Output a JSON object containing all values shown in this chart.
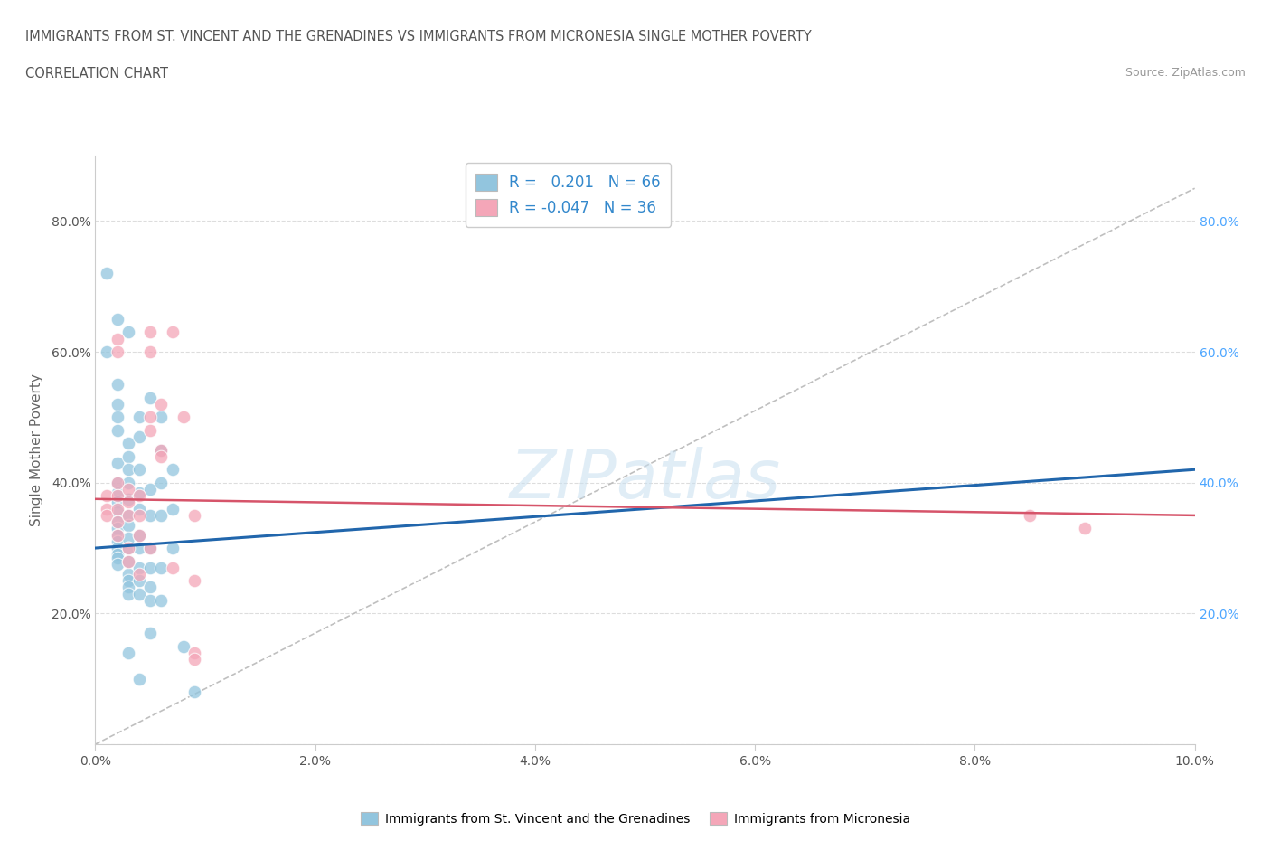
{
  "title_line1": "IMMIGRANTS FROM ST. VINCENT AND THE GRENADINES VS IMMIGRANTS FROM MICRONESIA SINGLE MOTHER POVERTY",
  "title_line2": "CORRELATION CHART",
  "source_text": "Source: ZipAtlas.com",
  "ylabel": "Single Mother Poverty",
  "watermark": "ZIPatlas",
  "xlim": [
    0.0,
    10.0
  ],
  "ylim": [
    0.0,
    90.0
  ],
  "xtick_vals": [
    0.0,
    2.0,
    4.0,
    6.0,
    8.0,
    10.0
  ],
  "xtick_labels": [
    "0.0%",
    "2.0%",
    "4.0%",
    "6.0%",
    "8.0%",
    "10.0%"
  ],
  "ytick_vals_left": [
    0.0,
    20.0,
    40.0,
    60.0,
    80.0
  ],
  "ytick_labels_left": [
    "",
    "20.0%",
    "40.0%",
    "60.0%",
    "80.0%"
  ],
  "ytick_vals_right": [
    20.0,
    40.0,
    60.0,
    80.0
  ],
  "ytick_labels_right": [
    "20.0%",
    "40.0%",
    "60.0%",
    "80.0%"
  ],
  "color_blue": "#92c5de",
  "color_pink": "#f4a6b8",
  "color_blue_line": "#2166ac",
  "color_pink_line": "#d6546a",
  "color_dashed": "#b0b0b0",
  "title_color": "#555555",
  "source_color": "#999999",
  "blue_scatter": [
    [
      0.1,
      72.0
    ],
    [
      0.1,
      60.0
    ],
    [
      0.2,
      65.0
    ],
    [
      0.2,
      55.0
    ],
    [
      0.2,
      52.0
    ],
    [
      0.2,
      50.0
    ],
    [
      0.2,
      48.0
    ],
    [
      0.2,
      43.0
    ],
    [
      0.2,
      40.0
    ],
    [
      0.2,
      38.5
    ],
    [
      0.2,
      37.0
    ],
    [
      0.2,
      35.5
    ],
    [
      0.2,
      34.0
    ],
    [
      0.2,
      33.0
    ],
    [
      0.2,
      32.0
    ],
    [
      0.2,
      31.0
    ],
    [
      0.2,
      30.0
    ],
    [
      0.2,
      29.0
    ],
    [
      0.2,
      28.5
    ],
    [
      0.2,
      27.5
    ],
    [
      0.3,
      63.0
    ],
    [
      0.3,
      46.0
    ],
    [
      0.3,
      44.0
    ],
    [
      0.3,
      42.0
    ],
    [
      0.3,
      40.0
    ],
    [
      0.3,
      37.5
    ],
    [
      0.3,
      35.0
    ],
    [
      0.3,
      33.5
    ],
    [
      0.3,
      31.5
    ],
    [
      0.3,
      30.0
    ],
    [
      0.3,
      28.0
    ],
    [
      0.3,
      26.0
    ],
    [
      0.3,
      25.0
    ],
    [
      0.3,
      24.0
    ],
    [
      0.3,
      23.0
    ],
    [
      0.3,
      14.0
    ],
    [
      0.4,
      50.0
    ],
    [
      0.4,
      47.0
    ],
    [
      0.4,
      42.0
    ],
    [
      0.4,
      38.5
    ],
    [
      0.4,
      36.0
    ],
    [
      0.4,
      32.0
    ],
    [
      0.4,
      30.0
    ],
    [
      0.4,
      27.0
    ],
    [
      0.4,
      25.0
    ],
    [
      0.4,
      23.0
    ],
    [
      0.4,
      10.0
    ],
    [
      0.5,
      53.0
    ],
    [
      0.5,
      39.0
    ],
    [
      0.5,
      35.0
    ],
    [
      0.5,
      30.0
    ],
    [
      0.5,
      27.0
    ],
    [
      0.5,
      24.0
    ],
    [
      0.5,
      22.0
    ],
    [
      0.5,
      17.0
    ],
    [
      0.6,
      50.0
    ],
    [
      0.6,
      45.0
    ],
    [
      0.6,
      40.0
    ],
    [
      0.6,
      35.0
    ],
    [
      0.6,
      27.0
    ],
    [
      0.6,
      22.0
    ],
    [
      0.7,
      42.0
    ],
    [
      0.7,
      36.0
    ],
    [
      0.7,
      30.0
    ],
    [
      0.8,
      15.0
    ],
    [
      0.9,
      8.0
    ]
  ],
  "pink_scatter": [
    [
      0.1,
      38.0
    ],
    [
      0.1,
      36.0
    ],
    [
      0.1,
      35.0
    ],
    [
      0.2,
      62.0
    ],
    [
      0.2,
      60.0
    ],
    [
      0.2,
      40.0
    ],
    [
      0.2,
      38.0
    ],
    [
      0.2,
      36.0
    ],
    [
      0.2,
      34.0
    ],
    [
      0.2,
      32.0
    ],
    [
      0.3,
      39.0
    ],
    [
      0.3,
      37.0
    ],
    [
      0.3,
      35.0
    ],
    [
      0.3,
      30.0
    ],
    [
      0.3,
      28.0
    ],
    [
      0.4,
      38.0
    ],
    [
      0.4,
      35.0
    ],
    [
      0.4,
      32.0
    ],
    [
      0.4,
      26.0
    ],
    [
      0.5,
      63.0
    ],
    [
      0.5,
      60.0
    ],
    [
      0.5,
      50.0
    ],
    [
      0.5,
      48.0
    ],
    [
      0.5,
      30.0
    ],
    [
      0.6,
      52.0
    ],
    [
      0.6,
      45.0
    ],
    [
      0.6,
      44.0
    ],
    [
      0.7,
      63.0
    ],
    [
      0.7,
      27.0
    ],
    [
      0.8,
      50.0
    ],
    [
      0.9,
      35.0
    ],
    [
      0.9,
      25.0
    ],
    [
      0.9,
      14.0
    ],
    [
      0.9,
      13.0
    ],
    [
      8.5,
      35.0
    ],
    [
      9.0,
      33.0
    ]
  ],
  "blue_trend_x": [
    0.0,
    10.0
  ],
  "blue_trend_y": [
    30.0,
    42.0
  ],
  "pink_trend_x": [
    0.0,
    10.0
  ],
  "pink_trend_y": [
    37.5,
    35.0
  ],
  "dashed_trend_x": [
    0.0,
    10.0
  ],
  "dashed_trend_y": [
    0.0,
    85.0
  ]
}
